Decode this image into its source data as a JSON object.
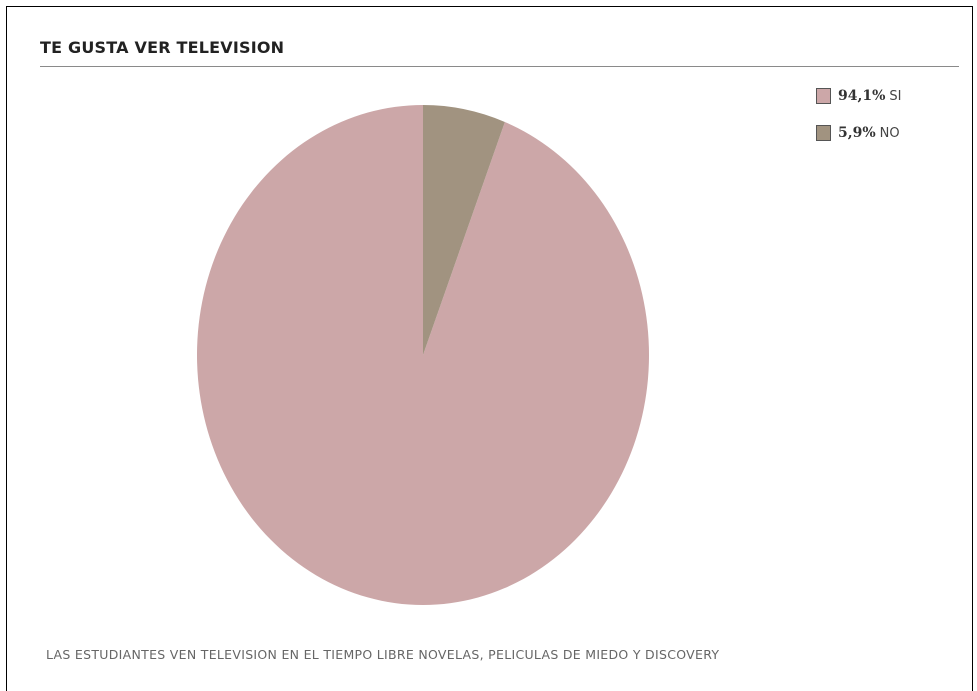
{
  "chart_data": {
    "type": "pie",
    "title": "TE GUSTA VER TELEVISION",
    "categories": [
      "SI",
      "NO"
    ],
    "values": [
      94.1,
      5.9
    ],
    "value_labels": [
      "94,1%",
      "5,9%"
    ],
    "colors": [
      "#cca7a8",
      "#a19380"
    ],
    "legend_position": "top-right",
    "caption": "LAS ESTUDIANTES VEN TELEVISION EN EL TIEMPO LIBRE NOVELAS, PELICULAS DE MIEDO Y DISCOVERY"
  }
}
